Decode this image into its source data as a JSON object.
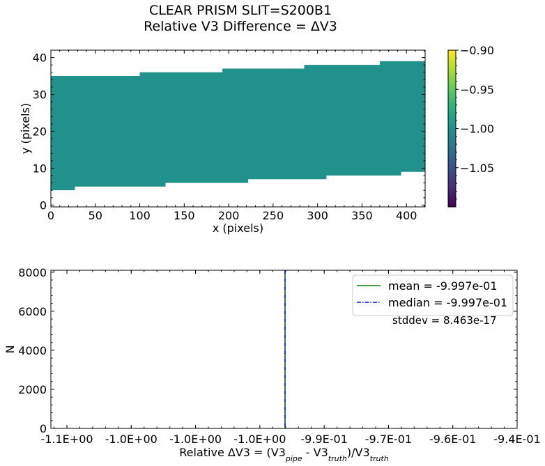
{
  "title_line1": "CLEAR   PRISM   SLIT=S200B1",
  "title_line2": "Relative V3 Difference = ΔV3",
  "chart_data": [
    {
      "type": "heatmap",
      "xlabel": "x (pixels)",
      "ylabel": "y (pixels)",
      "xlim": [
        0,
        421
      ],
      "ylim": [
        -0.5,
        42
      ],
      "x_ticks": [
        "0",
        "50",
        "100",
        "150",
        "200",
        "250",
        "300",
        "350",
        "400"
      ],
      "y_ticks": [
        "0",
        "10",
        "20",
        "30",
        "40"
      ],
      "fill_value": -0.9997,
      "fill_color": "#21918c",
      "upper_edge_steps": [
        {
          "x0": 0,
          "x1": 100,
          "y": 35
        },
        {
          "x0": 100,
          "x1": 193,
          "y": 36
        },
        {
          "x0": 193,
          "x1": 285,
          "y": 37
        },
        {
          "x0": 285,
          "x1": 370,
          "y": 38
        },
        {
          "x0": 370,
          "x1": 421,
          "y": 39
        }
      ],
      "lower_edge_steps": [
        {
          "x0": 0,
          "x1": 27,
          "y": 4
        },
        {
          "x0": 27,
          "x1": 129,
          "y": 5
        },
        {
          "x0": 129,
          "x1": 222,
          "y": 6
        },
        {
          "x0": 222,
          "x1": 310,
          "y": 7
        },
        {
          "x0": 310,
          "x1": 394,
          "y": 8
        },
        {
          "x0": 394,
          "x1": 421,
          "y": 9
        }
      ],
      "colorbar": {
        "colormap": "viridis",
        "range": [
          -1.1,
          -0.9
        ],
        "ticks": [
          "−0.90",
          "−0.95",
          "−1.00",
          "−1.05"
        ]
      }
    },
    {
      "type": "histogram",
      "xlabel": "Relative ΔV3 = (V3_pipe - V3_truth)/V3_truth",
      "ylabel": "N",
      "x_ticks": [
        "-1.1E+00",
        "-1.0E+00",
        "-1.0E+00",
        "-1.0E+00",
        "-9.9E-01",
        "-9.7E-01",
        "-9.6E-01",
        "-9.4E-01"
      ],
      "y_ticks": [
        "0",
        "2000",
        "4000",
        "6000",
        "8000"
      ],
      "ylim": [
        0,
        8100
      ],
      "mean_line": {
        "label": "mean = -9.997e-01",
        "color": "#008000",
        "x_value": -0.9997
      },
      "median_line": {
        "label": "median = -9.997e-01",
        "color": "#0000ff",
        "x_value": -0.9997
      },
      "stddev_text": "stddev = 8.463e-17",
      "legend_position": "upper right"
    }
  ]
}
